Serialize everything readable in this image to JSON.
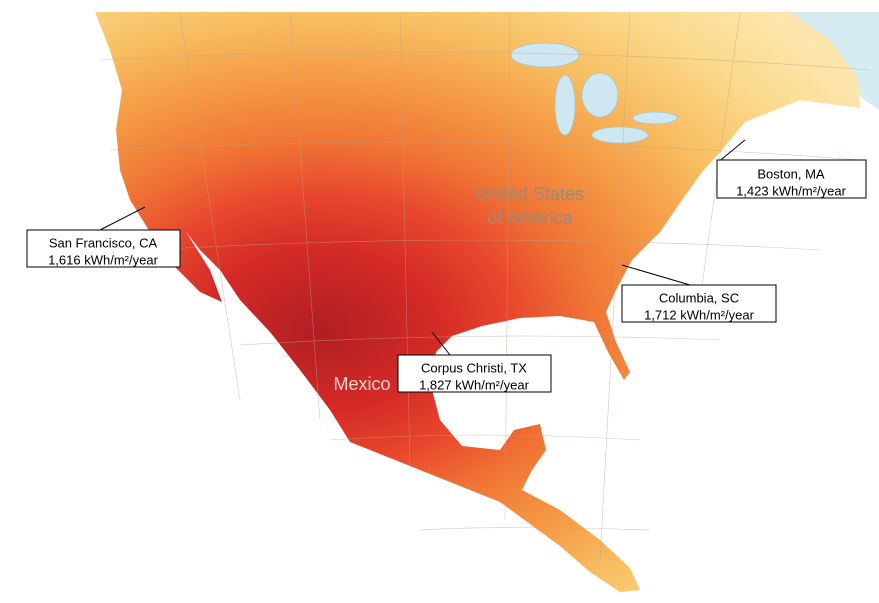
{
  "map": {
    "labels": {
      "usa_line1": "United States",
      "usa_line2": "of America",
      "mexico": "Mexico"
    },
    "callouts": [
      {
        "city": "Boston, MA",
        "irradiance": "1,423 kWh/m²/year"
      },
      {
        "city": "San Francisco, CA",
        "irradiance": "1,616 kWh/m²/year"
      },
      {
        "city": "Columbia, SC",
        "irradiance": "1,712 kWh/m²/year"
      },
      {
        "city": "Corpus Christi, TX",
        "irradiance": "1,827 kWh/m²/year"
      }
    ]
  }
}
